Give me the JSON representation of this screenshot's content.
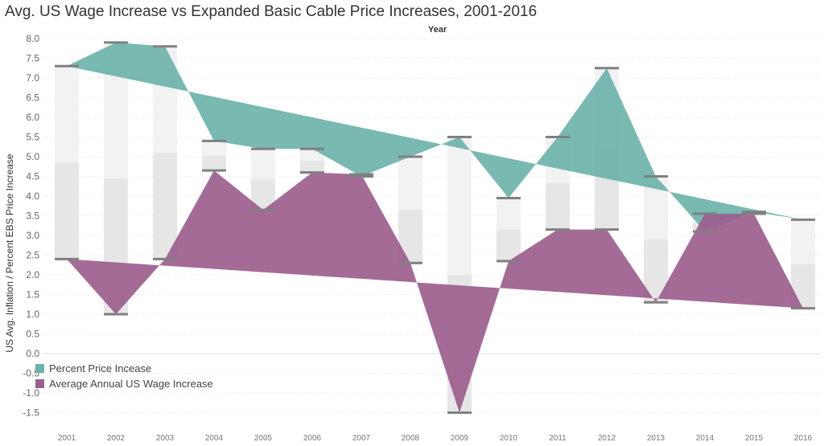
{
  "title": "Avg. US Wage Increase vs Expanded Basic Cable Price Increases, 2001-2016",
  "x_header": "Year",
  "y_axis_title": "US Avg. Inflation / Percent EBS Price Increase",
  "chart_data": {
    "type": "area",
    "title": "Avg. US Wage Increase vs Expanded Basic Cable Price Increases, 2001-2016",
    "xlabel": "Year",
    "ylabel": "US Avg. Inflation / Percent EBS Price Increase",
    "categories": [
      "2001",
      "2002",
      "2003",
      "2004",
      "2005",
      "2006",
      "2007",
      "2008",
      "2009",
      "2010",
      "2011",
      "2012",
      "2013",
      "2014",
      "2015",
      "2016"
    ],
    "y_ticks": [
      "8.0",
      "7.5",
      "7.0",
      "6.5",
      "6.0",
      "5.5",
      "5.0",
      "4.5",
      "4.0",
      "3.5",
      "3.0",
      "2.5",
      "2.0",
      "1.5",
      "1.0",
      "0.5",
      "0.0",
      "-0.5",
      "-1.0",
      "-1.5"
    ],
    "ylim": [
      -1.75,
      8.1
    ],
    "grid": true,
    "legend_position": "bottom-left",
    "series": [
      {
        "name": "Percent Price Incease",
        "color": "#6cb3aa",
        "values": [
          7.3,
          7.9,
          7.8,
          5.4,
          5.2,
          5.2,
          4.5,
          5.0,
          5.5,
          3.95,
          5.5,
          7.25,
          4.5,
          3.1,
          3.6,
          3.4
        ],
        "trend": [
          7.3,
          3.4
        ]
      },
      {
        "name": "Average Annual US Wage Increase",
        "color": "#9c5e8e",
        "values": [
          2.4,
          1.0,
          2.4,
          4.65,
          3.65,
          4.6,
          4.55,
          2.3,
          -1.5,
          2.35,
          3.15,
          3.15,
          1.3,
          3.55,
          3.55,
          1.15
        ],
        "trend": [
          2.4,
          1.15
        ]
      }
    ]
  }
}
